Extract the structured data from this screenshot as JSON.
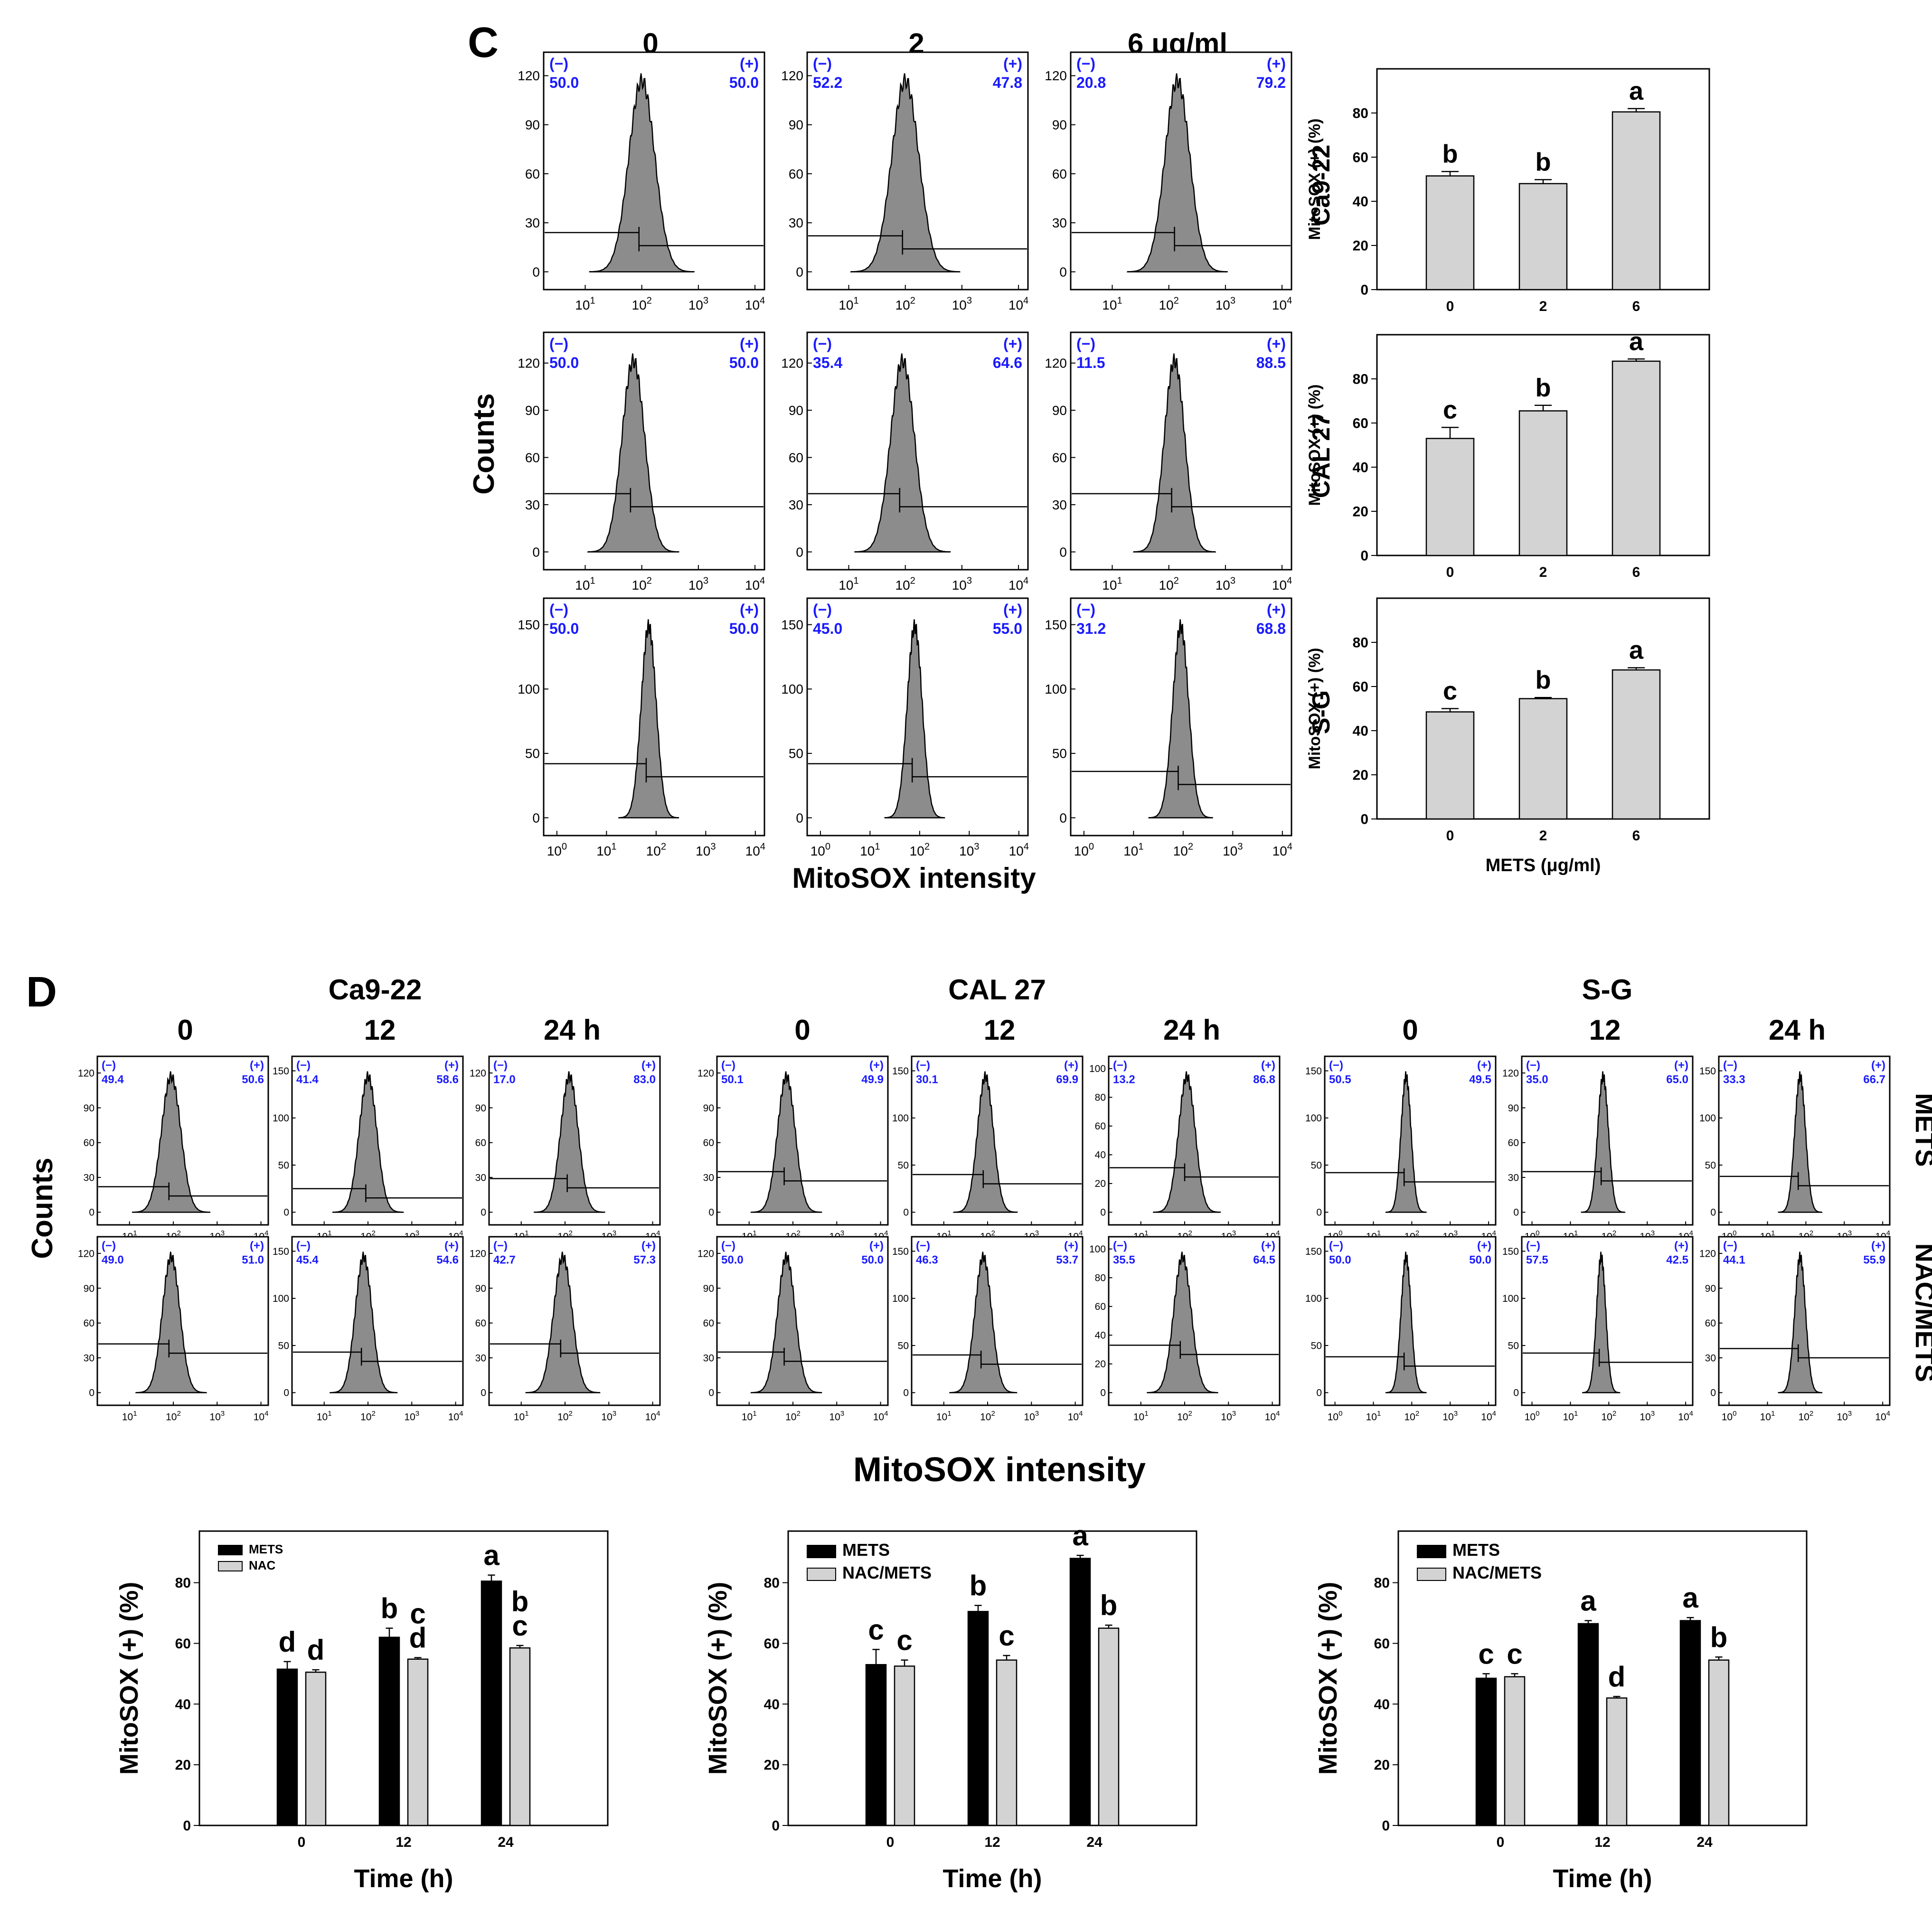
{
  "colors": {
    "blue": "#1a1aff",
    "hist_fill": "#8c8c8c",
    "bar_light": "#d3d3d3",
    "bar_dark": "#000000"
  },
  "panel_c": {
    "letter": "C",
    "dose_headers": [
      "0",
      "2",
      "6 μg/ml"
    ],
    "y_label": "Counts",
    "x_label": "MitoSOX intensity",
    "bar_x_label": "METS (μg/ml)",
    "bar_y_label": "MitoSOX (+) (%)"
  },
  "panel_d": {
    "letter": "D",
    "cell_lines": [
      "Ca9-22",
      "CAL 27",
      "S-G"
    ],
    "time_headers": [
      "0",
      "12",
      "24 h"
    ],
    "row_labels": [
      "METS",
      "NAC/METS"
    ],
    "y_label": "Counts",
    "x_label": "MitoSOX intensity",
    "bar_x_label": "Time (h)",
    "bar_y_label": "MitoSOX (+) (%)"
  },
  "chart_data": [
    {
      "id": "C-Ca9-22-0",
      "type": "area",
      "title": "Ca9-22 0",
      "ylim": [
        0,
        130
      ],
      "yticks": [
        0,
        30,
        60,
        90,
        120
      ],
      "xticks": [
        "10^1",
        "10^2",
        "10^3",
        "10^4"
      ],
      "peak": 2.0,
      "width": 0.23,
      "marker_y": 24,
      "neg_label": "(−)",
      "pos_label": "(+)",
      "neg": "50.0",
      "pos": "50.0"
    },
    {
      "id": "C-Ca9-22-2",
      "type": "area",
      "title": "Ca9-22 2",
      "ylim": [
        0,
        130
      ],
      "yticks": [
        0,
        30,
        60,
        90,
        120
      ],
      "xticks": [
        "10^1",
        "10^2",
        "10^3",
        "10^4"
      ],
      "peak": 2.0,
      "width": 0.24,
      "marker_y": 22,
      "neg_label": "(−)",
      "pos_label": "(+)",
      "neg": "52.2",
      "pos": "47.8"
    },
    {
      "id": "C-Ca9-22-6",
      "type": "area",
      "title": "Ca9-22 6",
      "ylim": [
        0,
        130
      ],
      "yticks": [
        0,
        30,
        60,
        90,
        120
      ],
      "xticks": [
        "10^1",
        "10^2",
        "10^3",
        "10^4"
      ],
      "peak": 2.15,
      "width": 0.22,
      "marker_y": 24,
      "neg_label": "(−)",
      "pos_label": "(+)",
      "neg": "20.8",
      "pos": "79.2"
    },
    {
      "id": "C-CAL27-0",
      "type": "area",
      "title": "CAL 27 0",
      "ylim": [
        0,
        135
      ],
      "yticks": [
        0,
        30,
        60,
        90,
        120
      ],
      "xticks": [
        "10^1",
        "10^2",
        "10^3",
        "10^4"
      ],
      "peak": 1.85,
      "width": 0.2,
      "marker_y": 37,
      "neg_label": "(−)",
      "pos_label": "(+)",
      "neg": "50.0",
      "pos": "50.0"
    },
    {
      "id": "C-CAL27-2",
      "type": "area",
      "title": "CAL 27 2",
      "ylim": [
        0,
        135
      ],
      "yticks": [
        0,
        30,
        60,
        90,
        120
      ],
      "xticks": [
        "10^1",
        "10^2",
        "10^3",
        "10^4"
      ],
      "peak": 1.95,
      "width": 0.21,
      "marker_y": 37,
      "neg_label": "(−)",
      "pos_label": "(+)",
      "neg": "35.4",
      "pos": "64.6"
    },
    {
      "id": "C-CAL27-6",
      "type": "area",
      "title": "CAL 27 6",
      "ylim": [
        0,
        135
      ],
      "yticks": [
        0,
        30,
        60,
        90,
        120
      ],
      "xticks": [
        "10^1",
        "10^2",
        "10^3",
        "10^4"
      ],
      "peak": 2.1,
      "width": 0.18,
      "marker_y": 37,
      "neg_label": "(−)",
      "pos_label": "(+)",
      "neg": "11.5",
      "pos": "88.5"
    },
    {
      "id": "C-SG-0",
      "type": "area",
      "title": "S-G 0",
      "ylim": [
        0,
        165
      ],
      "yticks": [
        0,
        50,
        100,
        150
      ],
      "xticks": [
        "10^0",
        "10^1",
        "10^2",
        "10^3",
        "10^4"
      ],
      "peak": 1.85,
      "width": 0.15,
      "marker_y": 42,
      "neg_label": "(−)",
      "pos_label": "(+)",
      "neg": "50.0",
      "pos": "50.0"
    },
    {
      "id": "C-SG-2",
      "type": "area",
      "title": "S-G 2",
      "ylim": [
        0,
        165
      ],
      "yticks": [
        0,
        50,
        100,
        150
      ],
      "xticks": [
        "10^0",
        "10^1",
        "10^2",
        "10^3",
        "10^4"
      ],
      "peak": 1.9,
      "width": 0.15,
      "marker_y": 42,
      "neg_label": "(−)",
      "pos_label": "(+)",
      "neg": "45.0",
      "pos": "55.0"
    },
    {
      "id": "C-SG-6",
      "type": "area",
      "title": "S-G 6",
      "ylim": [
        0,
        165
      ],
      "yticks": [
        0,
        50,
        100,
        150
      ],
      "xticks": [
        "10^0",
        "10^1",
        "10^2",
        "10^3",
        "10^4"
      ],
      "peak": 1.95,
      "width": 0.16,
      "marker_y": 36,
      "neg_label": "(−)",
      "pos_label": "(+)",
      "neg": "31.2",
      "pos": "68.8"
    },
    {
      "id": "C-bar-Ca9-22",
      "type": "bar",
      "title": "Ca9-22",
      "categories": [
        "0",
        "2",
        "6"
      ],
      "values": [
        51.5,
        48,
        80.5
      ],
      "errors": [
        2,
        1.8,
        1.5
      ],
      "letters": [
        "b",
        "b",
        "a"
      ],
      "ylim": [
        0,
        100
      ],
      "yticks": [
        0,
        20,
        40,
        60,
        80
      ],
      "ylabel": "MitoSOX (+) (%)"
    },
    {
      "id": "C-bar-CAL27",
      "type": "bar",
      "title": "CAL 27",
      "categories": [
        "0",
        "2",
        "6"
      ],
      "values": [
        53,
        65.5,
        88
      ],
      "errors": [
        5,
        2.5,
        1
      ],
      "letters": [
        "c",
        "b",
        "a"
      ],
      "ylim": [
        0,
        100
      ],
      "yticks": [
        0,
        20,
        40,
        60,
        80
      ],
      "ylabel": "MitoSOX (+) (%)"
    },
    {
      "id": "C-bar-SG",
      "type": "bar",
      "title": "S-G",
      "categories": [
        "0",
        "2",
        "6"
      ],
      "values": [
        48.5,
        54.5,
        67.5
      ],
      "errors": [
        1.5,
        0.5,
        1
      ],
      "letters": [
        "c",
        "b",
        "a"
      ],
      "ylim": [
        0,
        100
      ],
      "yticks": [
        0,
        20,
        40,
        60,
        80
      ],
      "ylabel": "MitoSOX (+) (%)",
      "xlabel": "METS (μg/ml)"
    },
    {
      "id": "D-Ca9-22-METS-0",
      "type": "area",
      "title": "Ca9-22 METS 0",
      "ylim": [
        0,
        130
      ],
      "yticks": [
        0,
        30,
        60,
        90,
        120
      ],
      "xticks": [
        "10^1",
        "10^2",
        "10^3",
        "10^4"
      ],
      "peak": 1.95,
      "width": 0.22,
      "marker_y": 22,
      "neg_label": "(−)",
      "pos_label": "(+)",
      "neg": "49.4",
      "pos": "50.6"
    },
    {
      "id": "D-Ca9-22-METS-12",
      "type": "area",
      "title": "Ca9-22 METS 12",
      "ylim": [
        0,
        160
      ],
      "yticks": [
        0,
        50,
        100,
        150
      ],
      "xticks": [
        "10^1",
        "10^2",
        "10^3",
        "10^4"
      ],
      "peak": 2.0,
      "width": 0.2,
      "marker_y": 25,
      "neg_label": "(−)",
      "pos_label": "(+)",
      "neg": "41.4",
      "pos": "58.6"
    },
    {
      "id": "D-Ca9-22-METS-24",
      "type": "area",
      "title": "Ca9-22 METS 24",
      "ylim": [
        0,
        130
      ],
      "yticks": [
        0,
        30,
        60,
        90,
        120
      ],
      "xticks": [
        "10^1",
        "10^2",
        "10^3",
        "10^4"
      ],
      "peak": 2.1,
      "width": 0.2,
      "marker_y": 29,
      "neg_label": "(−)",
      "pos_label": "(+)",
      "neg": "17.0",
      "pos": "83.0"
    },
    {
      "id": "D-Ca9-22-NAC-0",
      "type": "area",
      "title": "Ca9-22 NAC/METS 0",
      "ylim": [
        0,
        130
      ],
      "yticks": [
        0,
        30,
        60,
        90,
        120
      ],
      "xticks": [
        "10^1",
        "10^2",
        "10^3",
        "10^4"
      ],
      "peak": 1.95,
      "width": 0.2,
      "marker_y": 42,
      "neg_label": "(−)",
      "pos_label": "(+)",
      "neg": "49.0",
      "pos": "51.0"
    },
    {
      "id": "D-Ca9-22-NAC-12",
      "type": "area",
      "title": "Ca9-22 NAC/METS 12",
      "ylim": [
        0,
        160
      ],
      "yticks": [
        0,
        50,
        100,
        150
      ],
      "xticks": [
        "10^1",
        "10^2",
        "10^3",
        "10^4"
      ],
      "peak": 1.9,
      "width": 0.19,
      "marker_y": 43,
      "neg_label": "(−)",
      "pos_label": "(+)",
      "neg": "45.4",
      "pos": "54.6"
    },
    {
      "id": "D-Ca9-22-NAC-24",
      "type": "area",
      "title": "Ca9-22 NAC/METS 24",
      "ylim": [
        0,
        130
      ],
      "yticks": [
        0,
        30,
        60,
        90,
        120
      ],
      "xticks": [
        "10^1",
        "10^2",
        "10^3",
        "10^4"
      ],
      "peak": 1.95,
      "width": 0.21,
      "marker_y": 42,
      "neg_label": "(−)",
      "pos_label": "(+)",
      "neg": "42.7",
      "pos": "57.3"
    },
    {
      "id": "D-CAL27-METS-0",
      "type": "area",
      "title": "CAL 27 METS 0",
      "ylim": [
        0,
        130
      ],
      "yticks": [
        0,
        30,
        60,
        90,
        120
      ],
      "xticks": [
        "10^1",
        "10^2",
        "10^3",
        "10^4"
      ],
      "peak": 1.85,
      "width": 0.2,
      "marker_y": 35,
      "neg_label": "(−)",
      "pos_label": "(+)",
      "neg": "50.1",
      "pos": "49.9"
    },
    {
      "id": "D-CAL27-METS-12",
      "type": "area",
      "title": "CAL 27 METS 12",
      "ylim": [
        0,
        160
      ],
      "yticks": [
        0,
        50,
        100,
        150
      ],
      "xticks": [
        "10^1",
        "10^2",
        "10^3",
        "10^4"
      ],
      "peak": 1.95,
      "width": 0.18,
      "marker_y": 40,
      "neg_label": "(−)",
      "pos_label": "(+)",
      "neg": "30.1",
      "pos": "69.9"
    },
    {
      "id": "D-CAL27-METS-24",
      "type": "area",
      "title": "CAL 27 METS 24",
      "ylim": [
        0,
        105
      ],
      "yticks": [
        0,
        20,
        40,
        60,
        80,
        100
      ],
      "xticks": [
        "10^1",
        "10^2",
        "10^3",
        "10^4"
      ],
      "peak": 2.05,
      "width": 0.19,
      "marker_y": 31,
      "neg_label": "(−)",
      "pos_label": "(+)",
      "neg": "13.2",
      "pos": "86.8"
    },
    {
      "id": "D-CAL27-NAC-0",
      "type": "area",
      "title": "CAL 27 NAC/METS 0",
      "ylim": [
        0,
        130
      ],
      "yticks": [
        0,
        30,
        60,
        90,
        120
      ],
      "xticks": [
        "10^1",
        "10^2",
        "10^3",
        "10^4"
      ],
      "peak": 1.85,
      "width": 0.2,
      "marker_y": 35,
      "neg_label": "(−)",
      "pos_label": "(+)",
      "neg": "50.0",
      "pos": "50.0"
    },
    {
      "id": "D-CAL27-NAC-12",
      "type": "area",
      "title": "CAL 27 NAC/METS 12",
      "ylim": [
        0,
        160
      ],
      "yticks": [
        0,
        50,
        100,
        150
      ],
      "xticks": [
        "10^1",
        "10^2",
        "10^3",
        "10^4"
      ],
      "peak": 1.9,
      "width": 0.19,
      "marker_y": 40,
      "neg_label": "(−)",
      "pos_label": "(+)",
      "neg": "46.3",
      "pos": "53.7"
    },
    {
      "id": "D-CAL27-NAC-24",
      "type": "area",
      "title": "CAL 27 NAC/METS 24",
      "ylim": [
        0,
        105
      ],
      "yticks": [
        0,
        20,
        40,
        60,
        80,
        100
      ],
      "xticks": [
        "10^1",
        "10^2",
        "10^3",
        "10^4"
      ],
      "peak": 1.95,
      "width": 0.2,
      "marker_y": 33,
      "neg_label": "(−)",
      "pos_label": "(+)",
      "neg": "35.5",
      "pos": "64.5"
    },
    {
      "id": "D-SG-METS-0",
      "type": "area",
      "title": "S-G METS 0",
      "ylim": [
        0,
        160
      ],
      "yticks": [
        0,
        50,
        100,
        150
      ],
      "xticks": [
        "10^0",
        "10^1",
        "10^2",
        "10^3",
        "10^4"
      ],
      "peak": 1.85,
      "width": 0.13,
      "marker_y": 42,
      "neg_label": "(−)",
      "pos_label": "(+)",
      "neg": "50.5",
      "pos": "49.5"
    },
    {
      "id": "D-SG-METS-12",
      "type": "area",
      "title": "S-G METS 12",
      "ylim": [
        0,
        130
      ],
      "yticks": [
        0,
        30,
        60,
        90,
        120
      ],
      "xticks": [
        "10^0",
        "10^1",
        "10^2",
        "10^3",
        "10^4"
      ],
      "peak": 1.85,
      "width": 0.14,
      "marker_y": 35,
      "neg_label": "(−)",
      "pos_label": "(+)",
      "neg": "35.0",
      "pos": "65.0"
    },
    {
      "id": "D-SG-METS-24",
      "type": "area",
      "title": "S-G METS 24",
      "ylim": [
        0,
        160
      ],
      "yticks": [
        0,
        50,
        100,
        150
      ],
      "xticks": [
        "10^0",
        "10^1",
        "10^2",
        "10^3",
        "10^4"
      ],
      "peak": 1.85,
      "width": 0.14,
      "marker_y": 38,
      "neg_label": "(−)",
      "pos_label": "(+)",
      "neg": "33.3",
      "pos": "66.7"
    },
    {
      "id": "D-SG-NAC-0",
      "type": "area",
      "title": "S-G NAC/METS 0",
      "ylim": [
        0,
        160
      ],
      "yticks": [
        0,
        50,
        100,
        150
      ],
      "xticks": [
        "10^0",
        "10^1",
        "10^2",
        "10^3",
        "10^4"
      ],
      "peak": 1.85,
      "width": 0.13,
      "marker_y": 38,
      "neg_label": "(−)",
      "pos_label": "(+)",
      "neg": "50.0",
      "pos": "50.0"
    },
    {
      "id": "D-SG-NAC-12",
      "type": "area",
      "title": "S-G NAC/METS 12",
      "ylim": [
        0,
        160
      ],
      "yticks": [
        0,
        50,
        100,
        150
      ],
      "xticks": [
        "10^0",
        "10^1",
        "10^2",
        "10^3",
        "10^4"
      ],
      "peak": 1.8,
      "width": 0.12,
      "marker_y": 42,
      "neg_label": "(−)",
      "pos_label": "(+)",
      "neg": "57.5",
      "pos": "42.5"
    },
    {
      "id": "D-SG-NAC-24",
      "type": "area",
      "title": "S-G NAC/METS 24",
      "ylim": [
        0,
        130
      ],
      "yticks": [
        0,
        30,
        60,
        90,
        120
      ],
      "xticks": [
        "10^0",
        "10^1",
        "10^2",
        "10^3",
        "10^4"
      ],
      "peak": 1.85,
      "width": 0.14,
      "marker_y": 38,
      "neg_label": "(−)",
      "pos_label": "(+)",
      "neg": "44.1",
      "pos": "55.9"
    },
    {
      "id": "D-bar-Ca9-22",
      "type": "bar",
      "title": "Ca9-22",
      "categories": [
        "0",
        "12",
        "24"
      ],
      "series": [
        {
          "name": "METS",
          "values": [
            51.5,
            62,
            80.5
          ],
          "errors": [
            2.5,
            3,
            2
          ],
          "letters": [
            "d",
            "b",
            "a"
          ]
        },
        {
          "name": "NAC",
          "values": [
            50.5,
            54.8,
            58.5
          ],
          "errors": [
            0.8,
            0.5,
            0.8
          ],
          "letters": [
            "d",
            "c\nd",
            "b\nc"
          ]
        }
      ],
      "ylim": [
        0,
        97
      ],
      "yticks": [
        0,
        20,
        40,
        60,
        80
      ],
      "ylabel": "MitoSOX (+) (%)",
      "xlabel": "Time (h)",
      "legend": "top-left"
    },
    {
      "id": "D-bar-CAL27",
      "type": "bar",
      "title": "CAL 27",
      "categories": [
        "0",
        "12",
        "24"
      ],
      "series": [
        {
          "name": "METS",
          "values": [
            53,
            70.5,
            88
          ],
          "errors": [
            5,
            2,
            1
          ],
          "letters": [
            "c",
            "b",
            "a"
          ]
        },
        {
          "name": "NAC/METS",
          "values": [
            52.5,
            54.5,
            65
          ],
          "errors": [
            2,
            1.5,
            1
          ],
          "letters": [
            "c",
            "c",
            "b"
          ]
        }
      ],
      "ylim": [
        0,
        97
      ],
      "yticks": [
        0,
        20,
        40,
        60,
        80
      ],
      "ylabel": "MitoSOX (+) (%)",
      "xlabel": "Time (h)",
      "legend": "top-left"
    },
    {
      "id": "D-bar-SG",
      "type": "bar",
      "title": "S-G",
      "categories": [
        "0",
        "12",
        "24"
      ],
      "series": [
        {
          "name": "METS",
          "values": [
            48.5,
            66.5,
            67.5
          ],
          "errors": [
            1.5,
            1,
            1
          ],
          "letters": [
            "c",
            "a",
            "a"
          ]
        },
        {
          "name": "NAC/METS",
          "values": [
            49,
            42,
            54.5
          ],
          "errors": [
            1,
            0.5,
            1
          ],
          "letters": [
            "c",
            "d",
            "b"
          ]
        }
      ],
      "ylim": [
        0,
        97
      ],
      "yticks": [
        0,
        20,
        40,
        60,
        80
      ],
      "ylabel": "MitoSOX (+) (%)",
      "xlabel": "Time (h)",
      "legend": "top-left"
    }
  ]
}
